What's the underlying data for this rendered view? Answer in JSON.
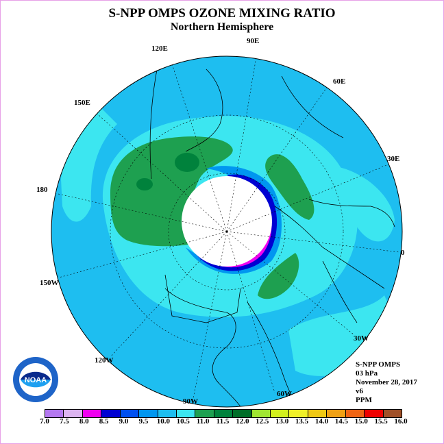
{
  "title": "S-NPP OMPS OZONE MIXING RATIO",
  "subtitle": "Northern Hemisphere",
  "longitude_labels": [
    "90E",
    "60E",
    "30E",
    "0",
    "30W",
    "60W",
    "90W",
    "120W",
    "150W",
    "180",
    "150E",
    "120E"
  ],
  "info": {
    "instrument": "S-NPP OMPS",
    "level": "03 hPa",
    "date": "November 28, 2017",
    "version": "v6",
    "units": "PPM"
  },
  "logo": {
    "text": "NOAA",
    "icon": "noaa-logo-icon"
  },
  "colorbar": {
    "ticks": [
      "7.0",
      "7.5",
      "8.0",
      "8.5",
      "9.0",
      "9.5",
      "10.0",
      "10.5",
      "11.0",
      "11.5",
      "12.0",
      "12.5",
      "13.0",
      "13.5",
      "14.0",
      "14.5",
      "15.0",
      "15.5",
      "16.0"
    ],
    "colors": [
      "#b478f0",
      "#dcb4f0",
      "#f000f0",
      "#0000d2",
      "#0050f0",
      "#0096f0",
      "#1ebef0",
      "#3ce6f0",
      "#1ea050",
      "#00823c",
      "#006e28",
      "#a0e632",
      "#d2f01e",
      "#f0f028",
      "#f0c814",
      "#f0a014",
      "#f06414",
      "#f00000",
      "#a05028"
    ]
  },
  "map": {
    "colors": {
      "ocean_ring": "#1ebef0",
      "band_9_5": "#0096f0",
      "band_10_5": "#3ce6f0",
      "band_11_0": "#1ea050",
      "band_11_5": "#00823c",
      "polar_night": "#ffffff",
      "high_band": "#f000f0",
      "high_band_outer": "#0000d2"
    }
  }
}
